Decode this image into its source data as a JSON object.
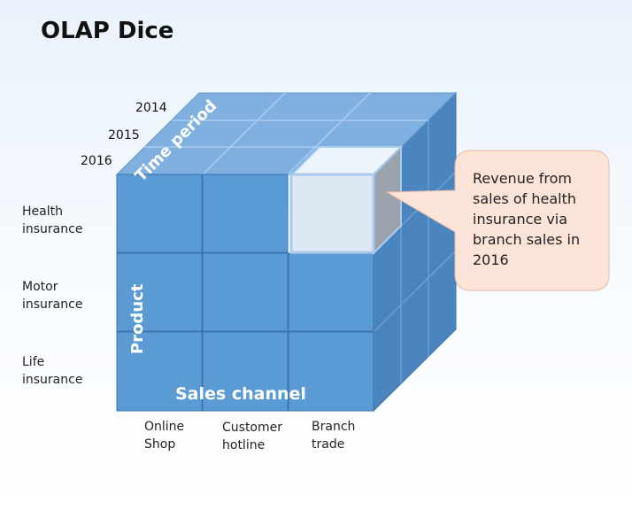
{
  "title": "OLAP Dice",
  "years": [
    "2014",
    "2015",
    "2016"
  ],
  "products": [
    "Health\ninsurance",
    "Motor\ninsurance",
    "Life\ninsurance"
  ],
  "channels": [
    "Online\nShop",
    "Customer\nhotline",
    "Branch\ntrade"
  ],
  "axis_labels": {
    "time": "Time period",
    "product": "Product",
    "channel": "Sales channel"
  },
  "callout": "Revenue from\nsales of health\ninsurance via\nbranch sales in\n2016",
  "colors": {
    "front": "#5b9bd5",
    "top": "#7fb0e0",
    "side": "#4a85bf",
    "highlight": "#dde8f4",
    "callout_bg": "#fde4d8"
  }
}
